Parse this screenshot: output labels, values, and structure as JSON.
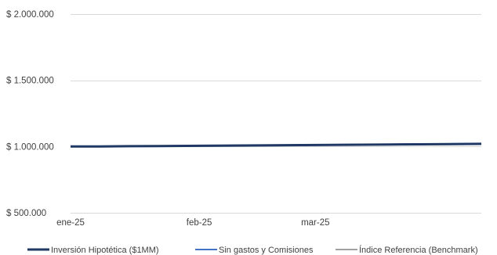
{
  "chart_data": {
    "type": "line",
    "title": "",
    "xlabel": "",
    "ylabel": "",
    "ylim": [
      500000,
      2000000
    ],
    "yticks": [
      {
        "value": 500000,
        "label": "$ 500.000"
      },
      {
        "value": 1000000,
        "label": "$ 1.000.000"
      },
      {
        "value": 1500000,
        "label": "$ 1.500.000"
      },
      {
        "value": 2000000,
        "label": "$ 2.000.000"
      }
    ],
    "xlim": [
      "2025-01-01",
      "2025-04-10"
    ],
    "xticks": [
      {
        "value": "2025-01-01",
        "label": "ene-25"
      },
      {
        "value": "2025-02-01",
        "label": "feb-25"
      },
      {
        "value": "2025-03-01",
        "label": "mar-25"
      }
    ],
    "grid": true,
    "legend_position": "bottom",
    "series": [
      {
        "name": "Inversión Hipotética ($1MM)",
        "color": "#1f3864",
        "x": [
          "2025-01-01",
          "2025-01-08",
          "2025-01-15",
          "2025-01-22",
          "2025-01-29",
          "2025-02-05",
          "2025-02-12",
          "2025-02-19",
          "2025-02-26",
          "2025-03-05",
          "2025-03-12",
          "2025-03-19",
          "2025-03-26",
          "2025-04-02",
          "2025-04-10"
        ],
        "y": [
          1000000,
          1001000,
          1002500,
          1004000,
          1005000,
          1006500,
          1008000,
          1009500,
          1011000,
          1012500,
          1014000,
          1015500,
          1017000,
          1018500,
          1020000
        ]
      },
      {
        "name": "Sin gastos y Comisiones",
        "color": "#4472c4",
        "x": [
          "2025-01-01",
          "2025-01-08",
          "2025-01-15",
          "2025-01-22",
          "2025-01-29",
          "2025-02-05",
          "2025-02-12",
          "2025-02-19",
          "2025-02-26",
          "2025-03-05",
          "2025-03-12",
          "2025-03-19",
          "2025-03-26",
          "2025-04-02",
          "2025-04-10"
        ],
        "y": [
          1000000,
          1001500,
          1003000,
          1004500,
          1006000,
          1007500,
          1009000,
          1010500,
          1012000,
          1013500,
          1015000,
          1016500,
          1018000,
          1019500,
          1021000
        ]
      },
      {
        "name": "Índice Referencia (Benchmark)",
        "color": "#808080",
        "x": [
          "2025-01-01",
          "2025-01-08",
          "2025-01-15",
          "2025-01-22",
          "2025-01-29",
          "2025-02-05",
          "2025-02-12",
          "2025-02-19",
          "2025-02-26",
          "2025-03-05",
          "2025-03-12",
          "2025-03-19",
          "2025-03-26",
          "2025-04-02",
          "2025-04-10"
        ],
        "y": [
          1000000,
          1001200,
          1002700,
          1004200,
          1005500,
          1007000,
          1008500,
          1010000,
          1011500,
          1013000,
          1014500,
          1016000,
          1017500,
          1019000,
          1020500
        ]
      }
    ]
  }
}
